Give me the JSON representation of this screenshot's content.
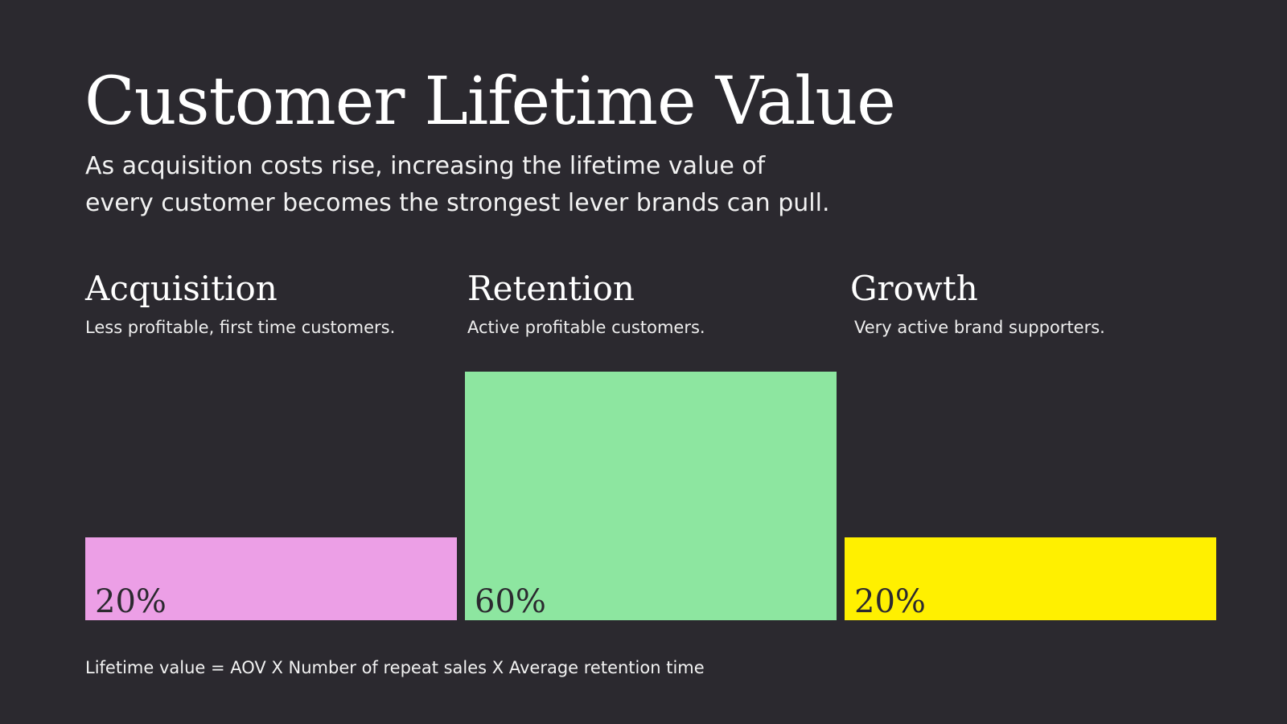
{
  "title": "Customer Lifetime Value",
  "subtitle": {
    "line1": "As acquisition costs rise, increasing the lifetime value of",
    "line2": "every customer becomes the strongest lever brands can pull."
  },
  "formula": "Lifetime value = AOV X Number of repeat sales X Average retention time",
  "chart_data": {
    "type": "bar",
    "categories": [
      "Acquisition",
      "Retention",
      "Growth"
    ],
    "descriptions": [
      "Less profitable, first time customers.",
      "Active profitable customers.",
      "Very active brand supporters."
    ],
    "values": [
      20,
      60,
      20
    ],
    "value_labels": [
      "20%",
      "60%",
      "20%"
    ],
    "colors": [
      "#ec9fe6",
      "#8de6a0",
      "#fff000"
    ],
    "ylim": [
      0,
      60
    ],
    "title": "",
    "xlabel": "",
    "ylabel": "",
    "grid": false,
    "legend": "none"
  }
}
